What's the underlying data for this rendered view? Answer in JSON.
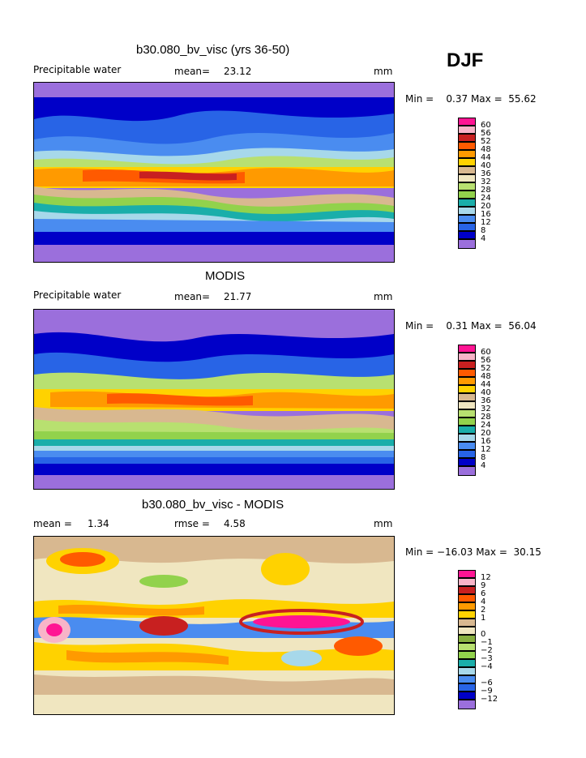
{
  "season": "DJF",
  "panels": [
    {
      "title": "b30.080_bv_visc (yrs 36-50)",
      "left_label": "Precipitable water",
      "stat_label": "mean=",
      "stat_value": "23.12",
      "units": "mm",
      "range_text": "Min =    0.37 Max =  55.62",
      "colors": [
        "#9b6fdc",
        "#0000c8",
        "#2864e6",
        "#4a8cf0",
        "#a7d8ea",
        "#1aaeaa",
        "#92d24c",
        "#b8e070",
        "#f0e6c0",
        "#d8b890",
        "#ffd200",
        "#ff9a00",
        "#ff5a00",
        "#c82020",
        "#f8b4c8",
        "#ff1493"
      ],
      "legend_labels": [
        "4",
        "8",
        "12",
        "16",
        "20",
        "24",
        "28",
        "32",
        "36",
        "40",
        "44",
        "48",
        "52",
        "56",
        "60"
      ]
    },
    {
      "title": "MODIS",
      "left_label": "Precipitable water",
      "stat_label": "mean=",
      "stat_value": "21.77",
      "units": "mm",
      "range_text": "Min =    0.31 Max =  56.04",
      "colors": [
        "#9b6fdc",
        "#0000c8",
        "#2864e6",
        "#4a8cf0",
        "#a7d8ea",
        "#1aaeaa",
        "#92d24c",
        "#b8e070",
        "#f0e6c0",
        "#d8b890",
        "#ffd200",
        "#ff9a00",
        "#ff5a00",
        "#c82020",
        "#f8b4c8",
        "#ff1493"
      ],
      "legend_labels": [
        "4",
        "8",
        "12",
        "16",
        "20",
        "24",
        "28",
        "32",
        "36",
        "40",
        "44",
        "48",
        "52",
        "56",
        "60"
      ]
    },
    {
      "title": "b30.080_bv_visc - MODIS",
      "left_label": "mean =     1.34",
      "stat_label": "rmse =",
      "stat_value": "4.58",
      "units": "mm",
      "range_text": "Min = −16.03 Max =  30.15",
      "colors": [
        "#9b6fdc",
        "#0000c8",
        "#2864e6",
        "#4a8cf0",
        "#a7d8ea",
        "#1aaeaa",
        "#92d24c",
        "#b8e070",
        "#88b040",
        "#f0e6c0",
        "#d8b890",
        "#ffd200",
        "#ff9a00",
        "#ff5a00",
        "#c82020",
        "#f8b4c8",
        "#ff1493"
      ],
      "legend_labels": [
        "−12",
        "−9",
        "−6",
        "−4",
        "−3",
        "−2",
        "−1",
        "0",
        "1",
        "2",
        "4",
        "6",
        "9",
        "12"
      ]
    }
  ],
  "chart_data": [
    {
      "type": "heatmap",
      "title": "b30.080_bv_visc (yrs 36-50)",
      "subtitle": "Precipitable water",
      "mean": 23.12,
      "units": "mm",
      "min": 0.37,
      "max": 55.62,
      "contour_levels": [
        4,
        8,
        12,
        16,
        20,
        24,
        28,
        32,
        36,
        40,
        44,
        48,
        52,
        56,
        60
      ]
    },
    {
      "type": "heatmap",
      "title": "MODIS",
      "subtitle": "Precipitable water",
      "mean": 21.77,
      "units": "mm",
      "min": 0.31,
      "max": 56.04,
      "contour_levels": [
        4,
        8,
        12,
        16,
        20,
        24,
        28,
        32,
        36,
        40,
        44,
        48,
        52,
        56,
        60
      ]
    },
    {
      "type": "heatmap",
      "title": "b30.080_bv_visc - MODIS",
      "mean": 1.34,
      "rmse": 4.58,
      "units": "mm",
      "min": -16.03,
      "max": 30.15,
      "contour_levels": [
        -12,
        -9,
        -6,
        -4,
        -3,
        -2,
        -1,
        0,
        1,
        2,
        4,
        6,
        9,
        12
      ]
    }
  ]
}
